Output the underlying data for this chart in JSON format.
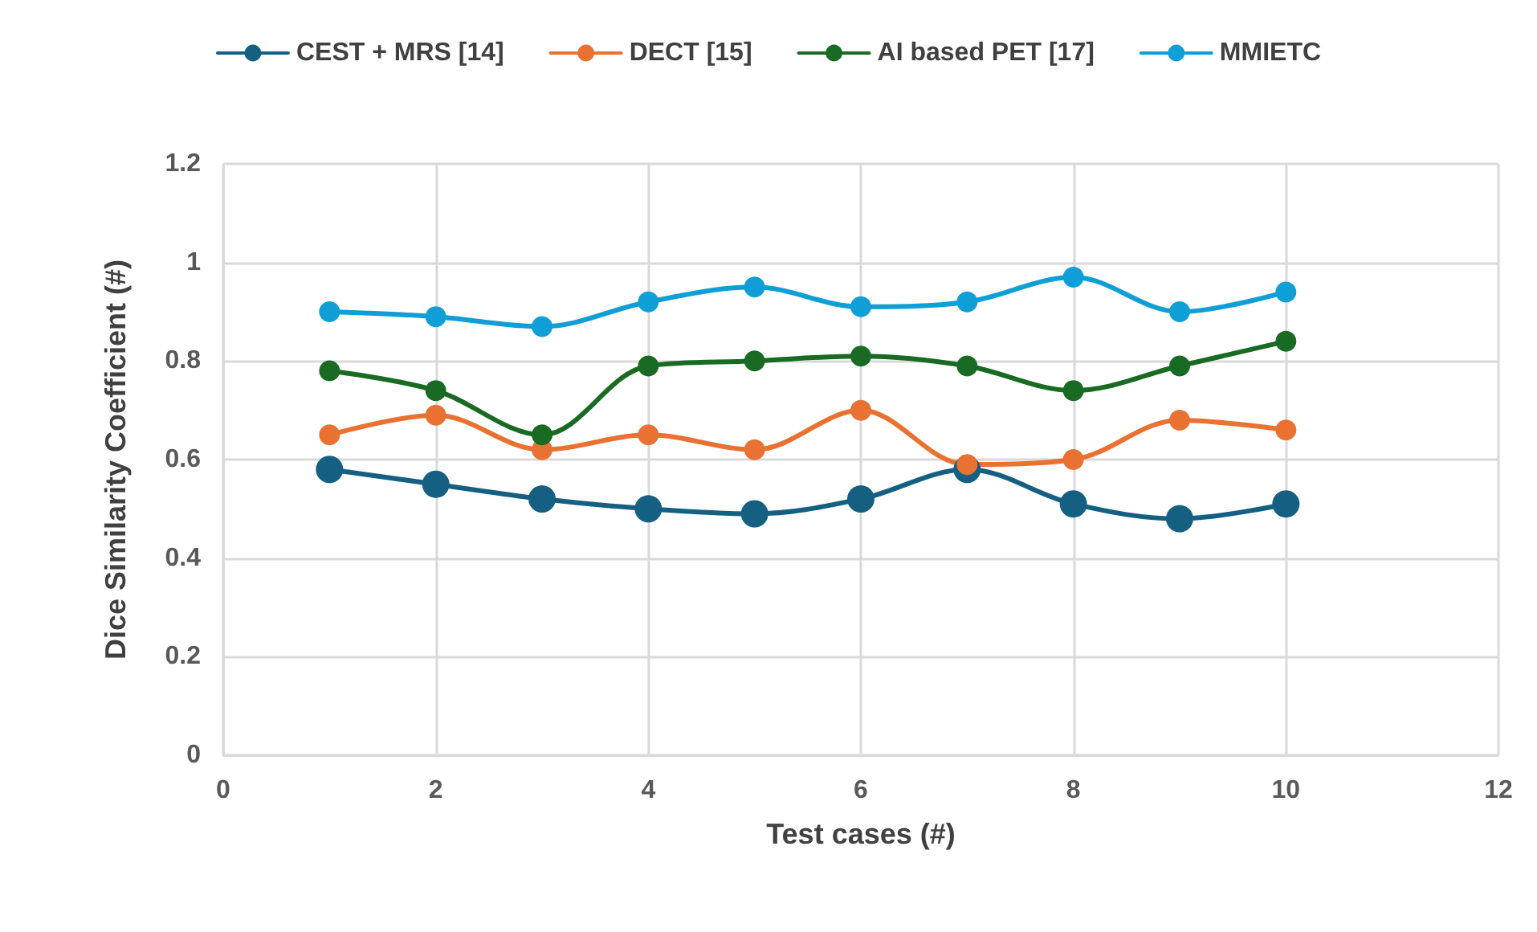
{
  "chart_data": {
    "type": "line",
    "xlabel": "Test cases (#)",
    "ylabel": "Dice Similarity Coefficient (#)",
    "x": [
      1,
      2,
      3,
      4,
      5,
      6,
      7,
      8,
      9,
      10
    ],
    "series": [
      {
        "name": "CEST + MRS [14]",
        "color": "#156082",
        "values": [
          0.58,
          0.55,
          0.52,
          0.5,
          0.49,
          0.52,
          0.58,
          0.51,
          0.48,
          0.51
        ]
      },
      {
        "name": "DECT [15]",
        "color": "#e97132",
        "values": [
          0.65,
          0.69,
          0.62,
          0.65,
          0.62,
          0.7,
          0.59,
          0.6,
          0.68,
          0.66
        ]
      },
      {
        "name": "AI based PET [17]",
        "color": "#196b24",
        "values": [
          0.78,
          0.74,
          0.65,
          0.79,
          0.8,
          0.81,
          0.79,
          0.74,
          0.79,
          0.84
        ]
      },
      {
        "name": "MMIETC",
        "color": "#0f9ed5",
        "values": [
          0.9,
          0.89,
          0.87,
          0.92,
          0.95,
          0.91,
          0.92,
          0.97,
          0.9,
          0.94
        ]
      }
    ],
    "xlim": [
      0,
      12
    ],
    "xticks": [
      0,
      2,
      4,
      6,
      8,
      10,
      12
    ],
    "ylim": [
      0,
      1.2
    ],
    "yticks": [
      0,
      0.2,
      0.4,
      0.6,
      0.8,
      1,
      1.2
    ],
    "grid": true,
    "legend": "top",
    "marker": "circle",
    "line_style": "solid"
  }
}
